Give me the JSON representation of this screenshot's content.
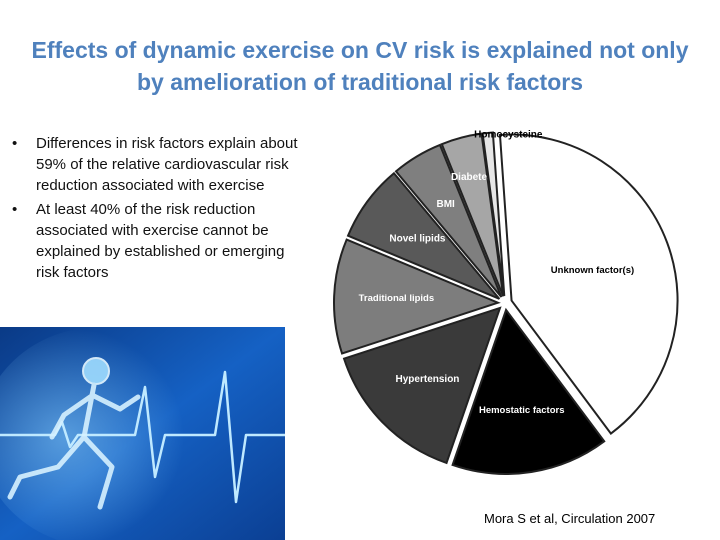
{
  "slide": {
    "title": "Effects of dynamic exercise on CV risk is explained not only by amelioration of traditional risk factors",
    "bullets": [
      "Differences in risk factors explain about 59% of the relative cardiovascular risk reduction associated with exercise",
      "At least 40% of the risk reduction associated with exercise cannot be explained by established or emerging risk factors"
    ],
    "citation": "Mora S et al, Circulation 2007"
  },
  "chart_data": {
    "type": "pie",
    "title": "",
    "slices": [
      {
        "label": "Unknown factor(s)",
        "value": 40.9,
        "color": "#ffffff",
        "text_color": "#000000"
      },
      {
        "label": "Hemostatic factors",
        "value": 15.5,
        "color": "#000000",
        "text_color": "#ffffff"
      },
      {
        "label": "Hypertension",
        "value": 14.7,
        "color": "#3a3a3a",
        "text_color": "#ffffff"
      },
      {
        "label": "Traditional lipids",
        "value": 11.3,
        "color": "#7d7d7d",
        "text_color": "#ffffff"
      },
      {
        "label": "Novel lipids",
        "value": 7.6,
        "color": "#595959",
        "text_color": "#ffffff"
      },
      {
        "label": "BMI",
        "value": 5.0,
        "color": "#7f7f7f",
        "text_color": "#ffffff"
      },
      {
        "label": "Diabetes",
        "value": 4.0,
        "color": "#a6a6a6",
        "text_color": "#ffffff"
      },
      {
        "label": "Homocysteine",
        "value": 1.0,
        "color": "#e6e6e6",
        "text_color": "#000000"
      }
    ]
  }
}
